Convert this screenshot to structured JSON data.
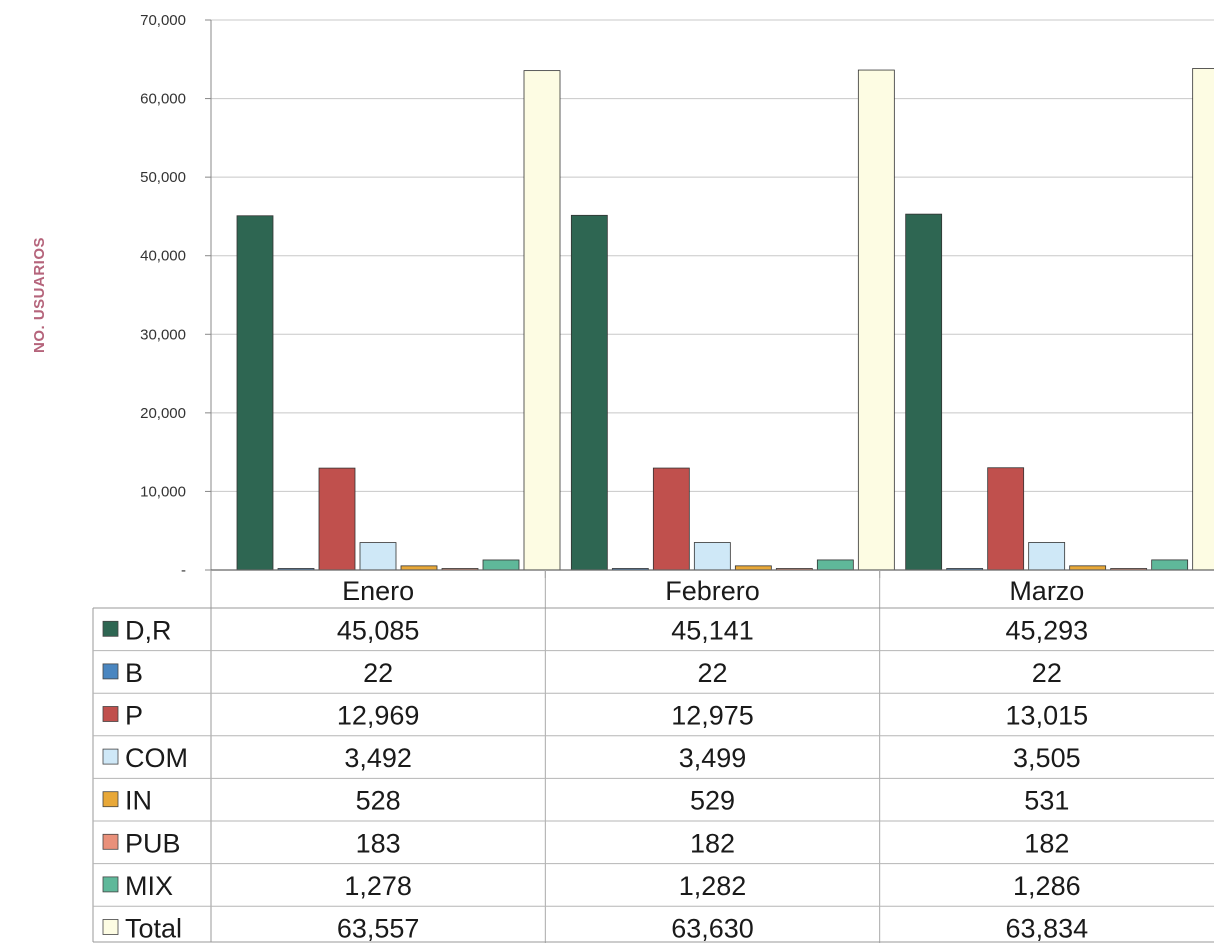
{
  "chart_data": {
    "type": "bar",
    "title": "",
    "xlabel": "",
    "ylabel": "NO. USUARIOS",
    "ylim": [
      0,
      70000
    ],
    "yticks": [
      "-",
      "10,000",
      "20,000",
      "30,000",
      "40,000",
      "50,000",
      "60,000",
      "70,000"
    ],
    "ytick_values": [
      0,
      10000,
      20000,
      30000,
      40000,
      50000,
      60000,
      70000
    ],
    "grid": true,
    "legend": "data-table-below",
    "categories": [
      "Enero",
      "Febrero",
      "Marzo"
    ],
    "series": [
      {
        "name": "D,R",
        "color": "#2e6652",
        "values": [
          45085,
          45141,
          45293
        ],
        "labels": [
          "45,085",
          "45,141",
          "45,293"
        ]
      },
      {
        "name": "B",
        "color": "#4a86c0",
        "values": [
          22,
          22,
          22
        ],
        "labels": [
          "22",
          "22",
          "22"
        ]
      },
      {
        "name": "P",
        "color": "#c0504d",
        "values": [
          12969,
          12975,
          13015
        ],
        "labels": [
          "12,969",
          "12,975",
          "13,015"
        ]
      },
      {
        "name": "COM",
        "color": "#cfe8f7",
        "values": [
          3492,
          3499,
          3505
        ],
        "labels": [
          "3,492",
          "3,499",
          "3,505"
        ]
      },
      {
        "name": "IN",
        "color": "#e8a838",
        "values": [
          528,
          529,
          531
        ],
        "labels": [
          "528",
          "529",
          "531"
        ]
      },
      {
        "name": "PUB",
        "color": "#e9907a",
        "values": [
          183,
          182,
          182
        ],
        "labels": [
          "183",
          "182",
          "182"
        ]
      },
      {
        "name": "MIX",
        "color": "#5fb89a",
        "values": [
          1278,
          1282,
          1286
        ],
        "labels": [
          "1,278",
          "1,282",
          "1,286"
        ]
      },
      {
        "name": "Total",
        "color": "#fdfce3",
        "values": [
          63557,
          63630,
          63834
        ],
        "labels": [
          "63,557",
          "63,630",
          "63,834"
        ]
      }
    ]
  }
}
